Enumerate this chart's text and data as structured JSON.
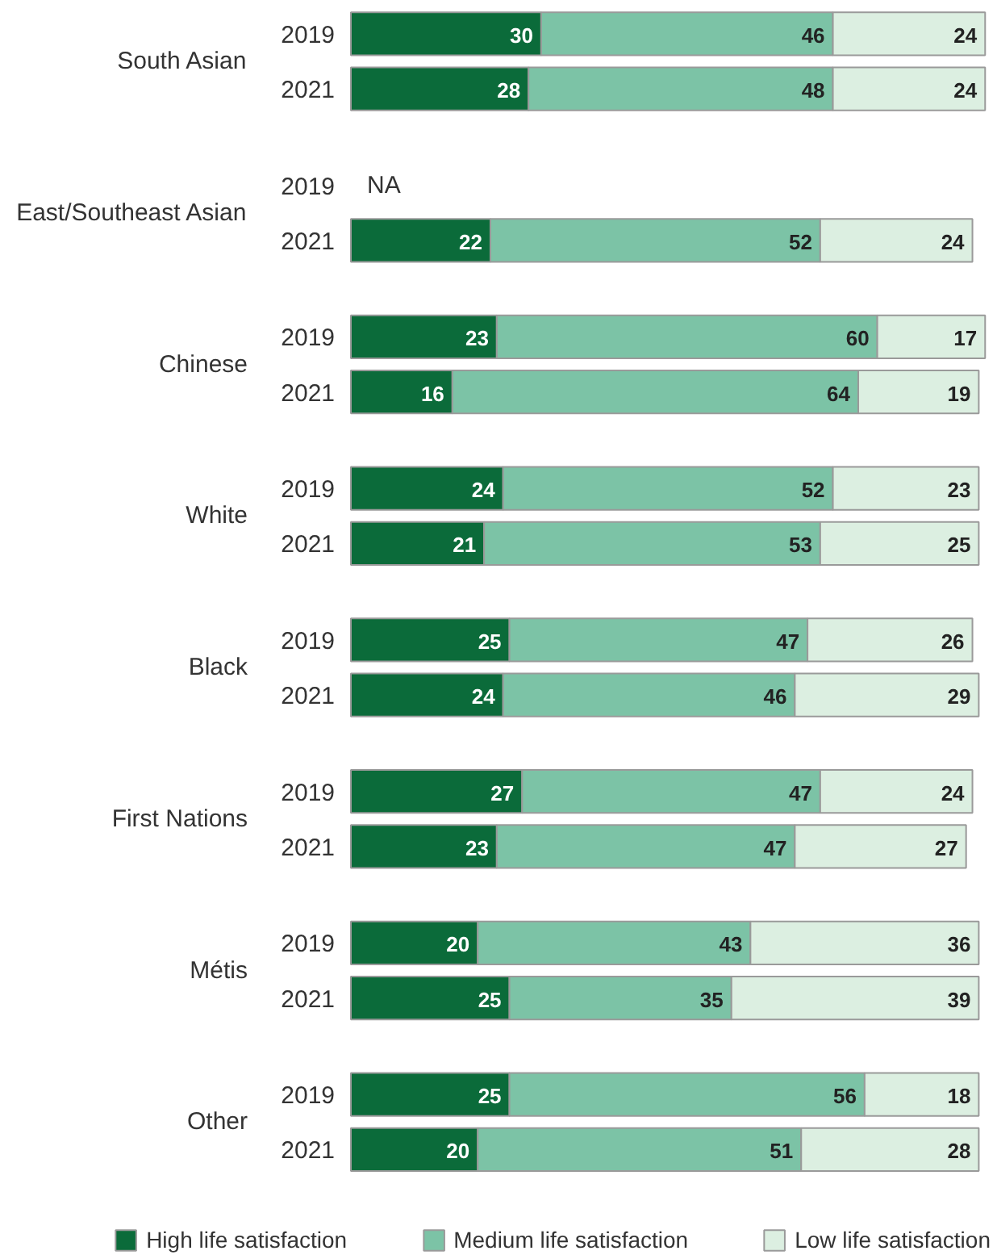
{
  "chart_data": {
    "type": "bar",
    "orientation": "horizontal",
    "stacked": true,
    "legend": "bottom",
    "grid": false,
    "categories": [
      "2019",
      "2021",
      "2019",
      "2021",
      "2019",
      "2021",
      "2019",
      "2021",
      "2019",
      "2021",
      "2019",
      "2021",
      "2019",
      "2021",
      "2019",
      "2021"
    ],
    "annotations": [
      "South Asian",
      "East/Southeast Asian",
      "Chinese",
      "White",
      "Black",
      "First Nations",
      "Métis",
      "Other"
    ],
    "series": [
      {
        "name": "High life satisfaction",
        "color": "#0b6b3a",
        "values": [
          30,
          28,
          null,
          22,
          23,
          16,
          24,
          21,
          25,
          24,
          27,
          23,
          20,
          25,
          25,
          20
        ],
        "value_labels": [
          "30",
          "28",
          "NA",
          "22",
          "23",
          "16",
          "24",
          "21",
          "25",
          "24",
          "27",
          "23",
          "20",
          "25",
          "25",
          "20"
        ]
      },
      {
        "name": "Medium life satisfaction",
        "color": "#7cc3a6",
        "values": [
          46,
          48,
          null,
          52,
          60,
          64,
          52,
          53,
          47,
          46,
          47,
          47,
          43,
          35,
          56,
          51
        ],
        "value_labels": [
          "46",
          "48",
          null,
          "52",
          "60",
          "64",
          "52",
          "53",
          "47",
          "46",
          "47",
          "47",
          "43",
          "35",
          "56",
          "51"
        ]
      },
      {
        "name": "Low life satisfaction",
        "color": "#dcefe1",
        "values": [
          24,
          24,
          null,
          24,
          17,
          19,
          23,
          25,
          26,
          29,
          24,
          27,
          36,
          39,
          18,
          28
        ],
        "value_labels": [
          "24",
          "24",
          null,
          "24",
          "17",
          "19",
          "23",
          "25",
          "26",
          "29",
          "24",
          "27",
          "36",
          "39",
          "18",
          "28"
        ]
      }
    ]
  }
}
